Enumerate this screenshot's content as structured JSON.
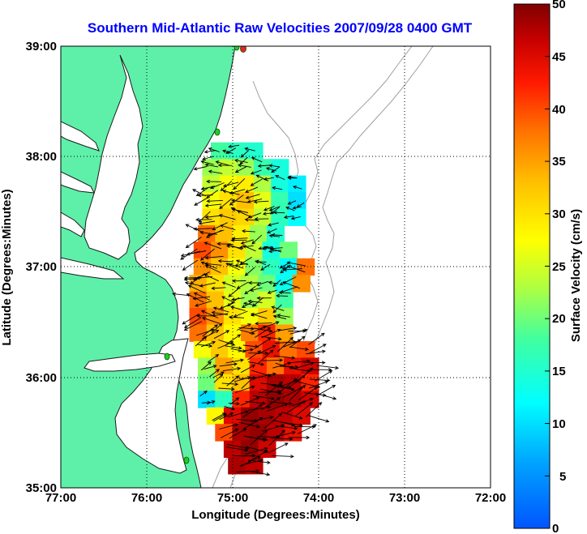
{
  "chart_data": {
    "type": "heatmap",
    "title": "Southern Mid-Atlantic Raw Velocities 2007/09/28 0400 GMT",
    "xlabel": "Longitude (Degrees:Minutes)",
    "ylabel": "Latitude (Degrees:Minutes)",
    "colorbar_label": "Surface Velocity (cm/s)",
    "x_ticks": [
      "77:00",
      "76:00",
      "75:00",
      "74:00",
      "73:00",
      "72:00"
    ],
    "y_ticks": [
      "39:00",
      "38:00",
      "37:00",
      "36:00",
      "35:00"
    ],
    "xlim": [
      -77,
      -72
    ],
    "ylim": [
      35,
      39
    ],
    "colorbar_ticks": [
      "50",
      "45",
      "40",
      "35",
      "30",
      "25",
      "20",
      "15",
      "10",
      "5",
      "0"
    ],
    "clim": [
      0,
      50
    ],
    "grid": true,
    "colors": {
      "land": "#5ef0a8",
      "coast": "#1a1a1a",
      "bathymetry": "#a0a0a0",
      "title": "#0000ff",
      "station": "#22cc22",
      "station_red": "#ee2222"
    },
    "field_cells": [
      {
        "lon": -75.15,
        "lat": 38.05,
        "v": 18
      },
      {
        "lon": -74.95,
        "lat": 38.05,
        "v": 16
      },
      {
        "lon": -74.75,
        "lat": 38.05,
        "v": 15
      },
      {
        "lon": -75.25,
        "lat": 37.9,
        "v": 22
      },
      {
        "lon": -75.05,
        "lat": 37.9,
        "v": 24
      },
      {
        "lon": -74.85,
        "lat": 37.9,
        "v": 22
      },
      {
        "lon": -74.65,
        "lat": 37.9,
        "v": 17
      },
      {
        "lon": -74.45,
        "lat": 37.9,
        "v": 14
      },
      {
        "lon": -75.25,
        "lat": 37.75,
        "v": 24
      },
      {
        "lon": -75.05,
        "lat": 37.75,
        "v": 27
      },
      {
        "lon": -74.85,
        "lat": 37.75,
        "v": 29
      },
      {
        "lon": -74.65,
        "lat": 37.75,
        "v": 23
      },
      {
        "lon": -74.45,
        "lat": 37.75,
        "v": 14
      },
      {
        "lon": -74.25,
        "lat": 37.75,
        "v": 11
      },
      {
        "lon": -75.25,
        "lat": 37.6,
        "v": 27
      },
      {
        "lon": -75.05,
        "lat": 37.6,
        "v": 30
      },
      {
        "lon": -74.85,
        "lat": 37.6,
        "v": 33
      },
      {
        "lon": -74.65,
        "lat": 37.6,
        "v": 26
      },
      {
        "lon": -74.45,
        "lat": 37.6,
        "v": 17
      },
      {
        "lon": -74.25,
        "lat": 37.6,
        "v": 10
      },
      {
        "lon": -75.25,
        "lat": 37.45,
        "v": 30
      },
      {
        "lon": -75.05,
        "lat": 37.45,
        "v": 32
      },
      {
        "lon": -74.85,
        "lat": 37.45,
        "v": 31
      },
      {
        "lon": -74.65,
        "lat": 37.45,
        "v": 24
      },
      {
        "lon": -74.45,
        "lat": 37.45,
        "v": 16
      },
      {
        "lon": -74.25,
        "lat": 37.45,
        "v": 12
      },
      {
        "lon": -75.3,
        "lat": 37.3,
        "v": 38
      },
      {
        "lon": -75.1,
        "lat": 37.3,
        "v": 33
      },
      {
        "lon": -74.9,
        "lat": 37.3,
        "v": 29
      },
      {
        "lon": -74.7,
        "lat": 37.3,
        "v": 22
      },
      {
        "lon": -74.5,
        "lat": 37.3,
        "v": 15
      },
      {
        "lon": -75.35,
        "lat": 37.15,
        "v": 40
      },
      {
        "lon": -75.15,
        "lat": 37.15,
        "v": 36
      },
      {
        "lon": -74.95,
        "lat": 37.15,
        "v": 30
      },
      {
        "lon": -74.75,
        "lat": 37.15,
        "v": 24
      },
      {
        "lon": -74.55,
        "lat": 37.15,
        "v": 14
      },
      {
        "lon": -74.35,
        "lat": 37.15,
        "v": 20
      },
      {
        "lon": -75.35,
        "lat": 37.0,
        "v": 36
      },
      {
        "lon": -75.15,
        "lat": 37.0,
        "v": 33
      },
      {
        "lon": -74.95,
        "lat": 37.0,
        "v": 27
      },
      {
        "lon": -74.75,
        "lat": 37.0,
        "v": 21
      },
      {
        "lon": -74.55,
        "lat": 37.0,
        "v": 16
      },
      {
        "lon": -74.35,
        "lat": 37.0,
        "v": 12
      },
      {
        "lon": -74.15,
        "lat": 37.0,
        "v": 38
      },
      {
        "lon": -75.4,
        "lat": 36.85,
        "v": 34
      },
      {
        "lon": -75.2,
        "lat": 36.85,
        "v": 30
      },
      {
        "lon": -75.0,
        "lat": 36.85,
        "v": 25
      },
      {
        "lon": -74.8,
        "lat": 36.85,
        "v": 23
      },
      {
        "lon": -74.6,
        "lat": 36.85,
        "v": 20
      },
      {
        "lon": -74.4,
        "lat": 36.85,
        "v": 13
      },
      {
        "lon": -74.2,
        "lat": 36.85,
        "v": 36
      },
      {
        "lon": -75.4,
        "lat": 36.7,
        "v": 38
      },
      {
        "lon": -75.2,
        "lat": 36.7,
        "v": 33
      },
      {
        "lon": -75.0,
        "lat": 36.7,
        "v": 26
      },
      {
        "lon": -74.8,
        "lat": 36.7,
        "v": 22
      },
      {
        "lon": -74.6,
        "lat": 36.7,
        "v": 25
      },
      {
        "lon": -74.4,
        "lat": 36.7,
        "v": 18
      },
      {
        "lon": -75.4,
        "lat": 36.55,
        "v": 40
      },
      {
        "lon": -75.2,
        "lat": 36.55,
        "v": 36
      },
      {
        "lon": -75.0,
        "lat": 36.55,
        "v": 30
      },
      {
        "lon": -74.8,
        "lat": 36.55,
        "v": 27
      },
      {
        "lon": -74.6,
        "lat": 36.55,
        "v": 32
      },
      {
        "lon": -74.4,
        "lat": 36.55,
        "v": 22
      },
      {
        "lon": -75.4,
        "lat": 36.4,
        "v": 38
      },
      {
        "lon": -75.2,
        "lat": 36.4,
        "v": 33
      },
      {
        "lon": -75.0,
        "lat": 36.4,
        "v": 28
      },
      {
        "lon": -74.8,
        "lat": 36.4,
        "v": 37
      },
      {
        "lon": -74.6,
        "lat": 36.4,
        "v": 42
      },
      {
        "lon": -74.4,
        "lat": 36.4,
        "v": 35
      },
      {
        "lon": -75.35,
        "lat": 36.25,
        "v": 27
      },
      {
        "lon": -75.15,
        "lat": 36.25,
        "v": 32
      },
      {
        "lon": -74.95,
        "lat": 36.25,
        "v": 28
      },
      {
        "lon": -74.75,
        "lat": 36.25,
        "v": 40
      },
      {
        "lon": -74.55,
        "lat": 36.25,
        "v": 44
      },
      {
        "lon": -74.35,
        "lat": 36.25,
        "v": 38
      },
      {
        "lon": -74.15,
        "lat": 36.25,
        "v": 40
      },
      {
        "lon": -75.3,
        "lat": 36.1,
        "v": 22
      },
      {
        "lon": -75.1,
        "lat": 36.1,
        "v": 35
      },
      {
        "lon": -74.9,
        "lat": 36.1,
        "v": 30
      },
      {
        "lon": -74.7,
        "lat": 36.1,
        "v": 42
      },
      {
        "lon": -74.5,
        "lat": 36.1,
        "v": 38
      },
      {
        "lon": -74.3,
        "lat": 36.1,
        "v": 44
      },
      {
        "lon": -74.1,
        "lat": 36.1,
        "v": 46
      },
      {
        "lon": -75.3,
        "lat": 35.95,
        "v": 20
      },
      {
        "lon": -75.1,
        "lat": 35.95,
        "v": 30
      },
      {
        "lon": -74.9,
        "lat": 35.95,
        "v": 33
      },
      {
        "lon": -74.7,
        "lat": 35.95,
        "v": 45
      },
      {
        "lon": -74.5,
        "lat": 35.95,
        "v": 48
      },
      {
        "lon": -74.3,
        "lat": 35.95,
        "v": 47
      },
      {
        "lon": -74.1,
        "lat": 35.95,
        "v": 42
      },
      {
        "lon": -75.3,
        "lat": 35.8,
        "v": 10
      },
      {
        "lon": -75.1,
        "lat": 35.8,
        "v": 16
      },
      {
        "lon": -74.9,
        "lat": 35.8,
        "v": 42
      },
      {
        "lon": -74.7,
        "lat": 35.8,
        "v": 47
      },
      {
        "lon": -74.5,
        "lat": 35.8,
        "v": 49
      },
      {
        "lon": -74.3,
        "lat": 35.8,
        "v": 48
      },
      {
        "lon": -74.1,
        "lat": 35.8,
        "v": 46
      },
      {
        "lon": -75.2,
        "lat": 35.65,
        "v": 28
      },
      {
        "lon": -75.0,
        "lat": 35.65,
        "v": 45
      },
      {
        "lon": -74.8,
        "lat": 35.65,
        "v": 49
      },
      {
        "lon": -74.6,
        "lat": 35.65,
        "v": 48
      },
      {
        "lon": -74.4,
        "lat": 35.65,
        "v": 47
      },
      {
        "lon": -74.2,
        "lat": 35.65,
        "v": 45
      },
      {
        "lon": -75.1,
        "lat": 35.5,
        "v": 40
      },
      {
        "lon": -74.9,
        "lat": 35.5,
        "v": 48
      },
      {
        "lon": -74.7,
        "lat": 35.5,
        "v": 49
      },
      {
        "lon": -74.5,
        "lat": 35.5,
        "v": 47
      },
      {
        "lon": -74.3,
        "lat": 35.5,
        "v": 44
      },
      {
        "lon": -75.0,
        "lat": 35.35,
        "v": 47
      },
      {
        "lon": -74.8,
        "lat": 35.35,
        "v": 49
      },
      {
        "lon": -74.6,
        "lat": 35.35,
        "v": 46
      },
      {
        "lon": -74.95,
        "lat": 35.2,
        "v": 48
      },
      {
        "lon": -74.75,
        "lat": 35.2,
        "v": 47
      }
    ]
  }
}
